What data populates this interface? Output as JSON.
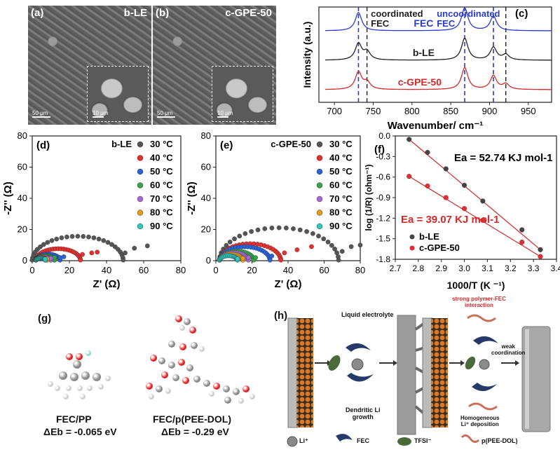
{
  "panels": {
    "a": {
      "letter": "(a)",
      "label": "b-LE",
      "scale_main": "50 μm",
      "scale_inset": "10 μm"
    },
    "b": {
      "letter": "(b)",
      "label": "c-GPE-50",
      "scale_main": "50 μm",
      "scale_inset": "10 μm"
    },
    "c": {
      "letter": "(c)",
      "coordinated": "coordinated\nFEC",
      "uncoordinated": "uncoordinated\nFEC",
      "trace_labels": [
        "FEC",
        "b-LE",
        "c-GPE-50"
      ]
    },
    "d": {
      "letter": "(d)",
      "sample": "b-LE"
    },
    "e": {
      "letter": "(e)",
      "sample": "c-GPE-50"
    },
    "f": {
      "letter": "(f)",
      "ea_ble": "Ea = 52.74 KJ mol-1",
      "ea_cgpe": "Ea = 39.07 KJ mol-1"
    },
    "g": {
      "letter": "(g)",
      "left_name": "FEC/PP",
      "left_eb": "ΔEb = -0.065 eV",
      "right_name": "FEC/p(PEE-DOL)",
      "right_eb": "ΔEb = -0.29 eV"
    },
    "h": {
      "letter": "(h)",
      "liquid": "Liquid electrolyte",
      "dendritic": "Dendritic Li\ngrowth",
      "strong": "strong polymer-FEC\ninteraction",
      "weak": "weak\ncoordination",
      "homogeneous": "Homogeneous\nLi⁺ deposition",
      "legend": [
        "Li⁺",
        "FEC",
        "TFSI⁻",
        "p(PEE-DOL)"
      ]
    }
  },
  "colors": {
    "blue": "#2a3bd1",
    "red": "#d42a2a",
    "black": "#222222"
  },
  "chart_data": [
    {
      "panel": "c",
      "type": "line",
      "xlabel": "Wavenumber/ cm⁻¹",
      "ylabel": "Intensity (a.u.)",
      "xlim": [
        680,
        980
      ],
      "xticks": [
        700,
        750,
        800,
        850,
        900,
        950
      ],
      "vlines_blue": [
        731,
        868,
        905
      ],
      "vlines_black": [
        742,
        921
      ],
      "series": [
        {
          "name": "FEC",
          "color": "#2a3bd1",
          "peaks": [
            [
              731,
              1.0
            ],
            [
              868,
              1.25
            ],
            [
              905,
              0.8
            ]
          ],
          "offset": 2
        },
        {
          "name": "b-LE",
          "color": "#222222",
          "peaks": [
            [
              731,
              0.9
            ],
            [
              742,
              0.45
            ],
            [
              868,
              1.2
            ],
            [
              905,
              0.7
            ],
            [
              921,
              0.3
            ]
          ],
          "offset": 1
        },
        {
          "name": "c-GPE-50",
          "color": "#d42a2a",
          "peaks": [
            [
              731,
              0.95
            ],
            [
              742,
              0.4
            ],
            [
              868,
              1.2
            ],
            [
              905,
              0.75
            ],
            [
              921,
              0.3
            ]
          ],
          "offset": 0
        }
      ]
    },
    {
      "panel": "d",
      "type": "scatter",
      "xlabel": "Z' (Ω)",
      "ylabel": "-Z'' (Ω)",
      "xlim": [
        0,
        80
      ],
      "ylim": [
        0,
        80
      ],
      "xticks": [
        0,
        20,
        40,
        60,
        80
      ],
      "yticks": [
        0,
        20,
        40,
        60,
        80
      ],
      "series": [
        {
          "name": "30 °C",
          "color": "#555555",
          "r": 49,
          "x0": 0,
          "tail": [
            [
              50,
              5
            ],
            [
              55,
              8
            ],
            [
              62,
              9.5
            ]
          ]
        },
        {
          "name": "40 °C",
          "color": "#e32f2f",
          "r": 24,
          "x0": 2,
          "tail": [
            [
              27,
              4
            ],
            [
              32,
              5
            ],
            [
              35,
              5.5
            ]
          ]
        },
        {
          "name": "50 °C",
          "color": "#2a63d6",
          "r": 13,
          "x0": 2,
          "tail": [
            [
              15,
              2
            ],
            [
              17,
              2.5
            ]
          ]
        },
        {
          "name": "60 °C",
          "color": "#37a24a",
          "r": 10,
          "x0": 2,
          "tail": [
            [
              12,
              2
            ]
          ]
        },
        {
          "name": "70 °C",
          "color": "#a66ad1",
          "r": 8,
          "x0": 2,
          "tail": [
            [
              10,
              1.5
            ]
          ]
        },
        {
          "name": "80 °C",
          "color": "#e39a1f",
          "r": 6,
          "x0": 2,
          "tail": [
            [
              8,
              1.2
            ]
          ]
        },
        {
          "name": "90 °C",
          "color": "#2ec9c0",
          "r": 5,
          "x0": 2,
          "tail": [
            [
              7,
              1
            ]
          ]
        }
      ]
    },
    {
      "panel": "e",
      "type": "scatter",
      "xlabel": "Z' (Ω)",
      "ylabel": "-Z'' (Ω)",
      "xlim": [
        0,
        80
      ],
      "ylim": [
        0,
        80
      ],
      "xticks": [
        0,
        20,
        40,
        60,
        80
      ],
      "yticks": [
        0,
        20,
        40,
        60,
        80
      ],
      "series": [
        {
          "name": "30 °C",
          "color": "#555555",
          "r": 66,
          "x0": 2,
          "tail": [
            [
              70,
              6
            ],
            [
              75,
              9
            ],
            [
              80,
              10
            ]
          ]
        },
        {
          "name": "40 °C",
          "color": "#e32f2f",
          "r": 34,
          "x0": 2,
          "tail": [
            [
              38,
              5
            ],
            [
              45,
              7
            ],
            [
              53,
              9
            ]
          ]
        },
        {
          "name": "50 °C",
          "color": "#2a63d6",
          "r": 28,
          "x0": 2,
          "tail": [
            [
              31,
              3
            ]
          ]
        },
        {
          "name": "60 °C",
          "color": "#37a24a",
          "r": 19,
          "x0": 2,
          "tail": [
            [
              22,
              2
            ]
          ]
        },
        {
          "name": "70 °C",
          "color": "#a66ad1",
          "r": 16,
          "x0": 2,
          "tail": [
            [
              18,
              2
            ]
          ]
        },
        {
          "name": "80 °C",
          "color": "#e39a1f",
          "r": 13,
          "x0": 2,
          "tail": [
            [
              15,
              1.5
            ]
          ]
        },
        {
          "name": "90 °C",
          "color": "#2ec9c0",
          "r": 10,
          "x0": 2,
          "tail": [
            [
              12,
              1.2
            ]
          ]
        }
      ]
    },
    {
      "panel": "f",
      "type": "scatter",
      "xlabel": "1000/T (K ⁻¹)",
      "ylabel": "log (1/R) (ohm⁻¹)",
      "xlim": [
        2.7,
        3.4
      ],
      "ylim": [
        -1.8,
        0.0
      ],
      "xticks": [
        2.7,
        2.8,
        2.9,
        3.0,
        3.1,
        3.2,
        3.3,
        3.4
      ],
      "yticks": [
        0.0,
        -0.3,
        -0.6,
        -0.9,
        -1.2,
        -1.5,
        -1.8
      ],
      "series": [
        {
          "name": "b-LE",
          "color": "#444444",
          "x": [
            2.76,
            2.84,
            2.92,
            3.0,
            3.08,
            3.25,
            3.33
          ],
          "y": [
            -0.05,
            -0.24,
            -0.48,
            -0.72,
            -0.95,
            -1.37,
            -1.66
          ]
        },
        {
          "name": "c-GPE-50",
          "color": "#e32f2f",
          "x": [
            2.76,
            2.84,
            2.92,
            3.0,
            3.08,
            3.25,
            3.33
          ],
          "y": [
            -0.59,
            -0.73,
            -0.9,
            -1.06,
            -1.23,
            -1.55,
            -1.76
          ]
        }
      ]
    }
  ]
}
